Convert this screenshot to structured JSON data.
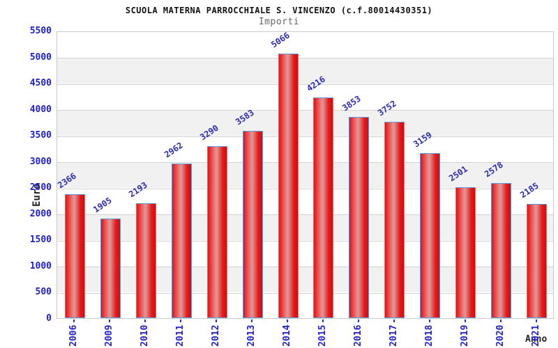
{
  "header": {
    "title": "SCUOLA MATERNA PARROCCHIALE S. VINCENZO (c.f.80014430351)",
    "subtitle": "Importi"
  },
  "chart_data": {
    "type": "bar",
    "title": "SCUOLA MATERNA PARROCCHIALE S. VINCENZO (c.f.80014430351)",
    "subtitle": "Importi",
    "xlabel": "Anno",
    "ylabel": "Euro",
    "categories": [
      "2006",
      "2009",
      "2010",
      "2011",
      "2012",
      "2013",
      "2014",
      "2015",
      "2016",
      "2017",
      "2018",
      "2019",
      "2020",
      "2021"
    ],
    "values": [
      2366,
      1905,
      2193,
      2962,
      3290,
      3583,
      5066,
      4216,
      3853,
      3752,
      3159,
      2501,
      2578,
      2185
    ],
    "ylim": [
      0,
      5500
    ],
    "ytick_step": 500,
    "yticks": [
      0,
      500,
      1000,
      1500,
      2000,
      2500,
      3000,
      3500,
      4000,
      4500,
      5000,
      5500
    ],
    "grid": "horizontal-on",
    "legend": "none",
    "colors": {
      "bar_fill": "#e51313",
      "bar_highlight": "#df8f8f",
      "bar_border": "#5b9add",
      "axis_text_blue": "#2020cc",
      "value_label_blue": "#2a2ab4",
      "band_gray": "#f1f1f1",
      "grid_line": "#d2d2d2",
      "title_black": "#111111",
      "subtitle_gray": "#666666"
    }
  }
}
